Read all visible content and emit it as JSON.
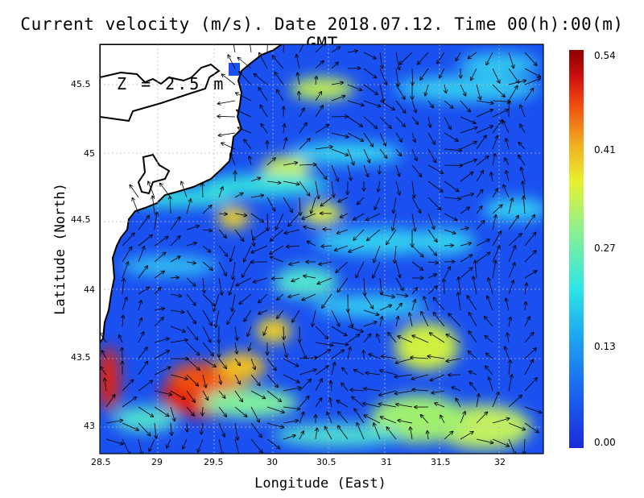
{
  "title": "Current velocity (m/s). Date 2018.07.12. Time 00(h):00(m) GMT",
  "depth_label": "Z = 2.5 m",
  "axes": {
    "xlabel": "Longitude (East)",
    "ylabel": "Latitude (North)",
    "x_ticks": [
      "28.5",
      "29",
      "29.5",
      "30",
      "30.5",
      "31",
      "31.5",
      "32"
    ],
    "y_ticks": [
      "45.5",
      "45",
      "44.5",
      "44",
      "43.5",
      "43"
    ],
    "xlim": [
      28.5,
      32.4
    ],
    "ylim": [
      42.8,
      45.8
    ],
    "grid": true
  },
  "colorbar": {
    "ticks": [
      "0.54",
      "0.41",
      "0.27",
      "0.13",
      "0.00"
    ],
    "min": 0.0,
    "max": 0.54
  },
  "colors": {
    "water_low": "#1a50f0",
    "land": "#ffffff",
    "coast": "#000000",
    "high": "#e01010"
  }
}
